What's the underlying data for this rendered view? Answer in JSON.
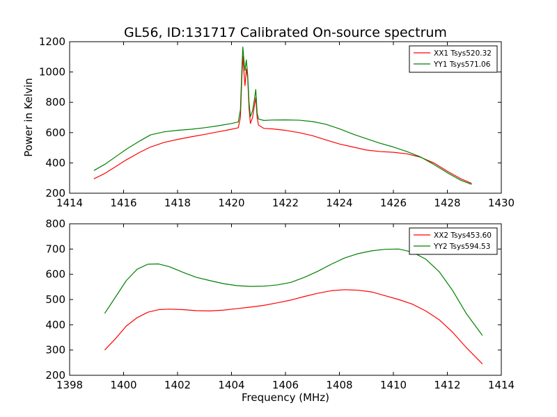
{
  "figure": {
    "title": "GL56, ID:131717 Calibrated On-source spectrum"
  },
  "chart_data": [
    {
      "type": "line",
      "title": "GL56, ID:131717 Calibrated On-source spectrum",
      "xlabel": "",
      "ylabel": "Power in Kelvin",
      "xlim": [
        1414,
        1430
      ],
      "ylim": [
        200,
        1200
      ],
      "xticks": [
        1414,
        1416,
        1418,
        1420,
        1422,
        1424,
        1426,
        1428,
        1430
      ],
      "yticks": [
        200,
        400,
        600,
        800,
        1000,
        1200
      ],
      "legend_position": "top-right",
      "grid": false,
      "series": [
        {
          "name": "XX1 Tsys520.32",
          "color": "#ff0000",
          "points": [
            [
              1414.9,
              295
            ],
            [
              1415.3,
              330
            ],
            [
              1415.7,
              375
            ],
            [
              1416.1,
              420
            ],
            [
              1416.6,
              470
            ],
            [
              1417.0,
              505
            ],
            [
              1417.5,
              535
            ],
            [
              1418.0,
              555
            ],
            [
              1418.5,
              572
            ],
            [
              1419.0,
              588
            ],
            [
              1419.5,
              605
            ],
            [
              1420.0,
              622
            ],
            [
              1420.25,
              632
            ],
            [
              1420.33,
              700
            ],
            [
              1420.38,
              950
            ],
            [
              1420.42,
              1105
            ],
            [
              1420.46,
              1000
            ],
            [
              1420.5,
              910
            ],
            [
              1420.55,
              1020
            ],
            [
              1420.6,
              960
            ],
            [
              1420.65,
              760
            ],
            [
              1420.7,
              660
            ],
            [
              1420.78,
              700
            ],
            [
              1420.85,
              780
            ],
            [
              1420.9,
              830
            ],
            [
              1420.95,
              700
            ],
            [
              1421.0,
              650
            ],
            [
              1421.2,
              628
            ],
            [
              1421.5,
              625
            ],
            [
              1422.0,
              615
            ],
            [
              1422.5,
              600
            ],
            [
              1423.0,
              580
            ],
            [
              1423.5,
              552
            ],
            [
              1424.0,
              525
            ],
            [
              1424.5,
              505
            ],
            [
              1425.0,
              485
            ],
            [
              1425.5,
              475
            ],
            [
              1426.0,
              470
            ],
            [
              1426.5,
              460
            ],
            [
              1427.0,
              438
            ],
            [
              1427.5,
              400
            ],
            [
              1428.0,
              345
            ],
            [
              1428.5,
              295
            ],
            [
              1428.9,
              265
            ]
          ]
        },
        {
          "name": "YY1 Tsys571.06",
          "color": "#008000",
          "points": [
            [
              1414.9,
              350
            ],
            [
              1415.3,
              390
            ],
            [
              1415.7,
              440
            ],
            [
              1416.1,
              490
            ],
            [
              1416.6,
              545
            ],
            [
              1417.0,
              585
            ],
            [
              1417.5,
              605
            ],
            [
              1418.0,
              615
            ],
            [
              1418.5,
              622
            ],
            [
              1419.0,
              632
            ],
            [
              1419.5,
              645
            ],
            [
              1420.0,
              660
            ],
            [
              1420.25,
              670
            ],
            [
              1420.33,
              750
            ],
            [
              1420.38,
              1000
            ],
            [
              1420.42,
              1165
            ],
            [
              1420.46,
              1080
            ],
            [
              1420.5,
              1010
            ],
            [
              1420.55,
              1080
            ],
            [
              1420.6,
              980
            ],
            [
              1420.65,
              800
            ],
            [
              1420.7,
              705
            ],
            [
              1420.78,
              745
            ],
            [
              1420.85,
              820
            ],
            [
              1420.9,
              885
            ],
            [
              1420.95,
              730
            ],
            [
              1421.0,
              690
            ],
            [
              1421.2,
              680
            ],
            [
              1421.5,
              683
            ],
            [
              1422.0,
              684
            ],
            [
              1422.5,
              682
            ],
            [
              1423.0,
              673
            ],
            [
              1423.5,
              655
            ],
            [
              1424.0,
              625
            ],
            [
              1424.5,
              590
            ],
            [
              1425.0,
              560
            ],
            [
              1425.5,
              530
            ],
            [
              1426.0,
              505
            ],
            [
              1426.5,
              475
            ],
            [
              1427.0,
              440
            ],
            [
              1427.5,
              390
            ],
            [
              1428.0,
              335
            ],
            [
              1428.5,
              285
            ],
            [
              1428.9,
              258
            ]
          ]
        }
      ]
    },
    {
      "type": "line",
      "title": "",
      "xlabel": "Frequency (MHz)",
      "ylabel": "",
      "xlim": [
        1398,
        1414
      ],
      "ylim": [
        200,
        800
      ],
      "xticks": [
        1398,
        1400,
        1402,
        1404,
        1406,
        1408,
        1410,
        1412,
        1414
      ],
      "yticks": [
        200,
        300,
        400,
        500,
        600,
        700,
        800
      ],
      "legend_position": "top-right",
      "grid": false,
      "series": [
        {
          "name": "XX2 Tsys453.60",
          "color": "#ff0000",
          "points": [
            [
              1399.3,
              300
            ],
            [
              1399.7,
              345
            ],
            [
              1400.1,
              395
            ],
            [
              1400.5,
              428
            ],
            [
              1400.9,
              450
            ],
            [
              1401.3,
              460
            ],
            [
              1401.7,
              462
            ],
            [
              1402.2,
              460
            ],
            [
              1402.7,
              456
            ],
            [
              1403.2,
              455
            ],
            [
              1403.7,
              458
            ],
            [
              1404.2,
              464
            ],
            [
              1404.7,
              470
            ],
            [
              1405.2,
              477
            ],
            [
              1405.7,
              487
            ],
            [
              1406.2,
              498
            ],
            [
              1406.7,
              512
            ],
            [
              1407.2,
              525
            ],
            [
              1407.7,
              535
            ],
            [
              1408.2,
              539
            ],
            [
              1408.7,
              537
            ],
            [
              1409.2,
              530
            ],
            [
              1409.7,
              515
            ],
            [
              1410.2,
              500
            ],
            [
              1410.7,
              482
            ],
            [
              1411.2,
              455
            ],
            [
              1411.7,
              420
            ],
            [
              1412.2,
              370
            ],
            [
              1412.7,
              310
            ],
            [
              1413.3,
              245
            ]
          ]
        },
        {
          "name": "YY2 Tsys594.53",
          "color": "#008000",
          "points": [
            [
              1399.3,
              445
            ],
            [
              1399.7,
              510
            ],
            [
              1400.1,
              575
            ],
            [
              1400.5,
              620
            ],
            [
              1400.9,
              640
            ],
            [
              1401.3,
              641
            ],
            [
              1401.7,
              630
            ],
            [
              1402.2,
              608
            ],
            [
              1402.7,
              588
            ],
            [
              1403.2,
              575
            ],
            [
              1403.7,
              563
            ],
            [
              1404.2,
              555
            ],
            [
              1404.7,
              552
            ],
            [
              1405.2,
              553
            ],
            [
              1405.7,
              558
            ],
            [
              1406.2,
              568
            ],
            [
              1406.7,
              588
            ],
            [
              1407.2,
              612
            ],
            [
              1407.7,
              640
            ],
            [
              1408.2,
              665
            ],
            [
              1408.7,
              682
            ],
            [
              1409.2,
              693
            ],
            [
              1409.7,
              699
            ],
            [
              1410.2,
              700
            ],
            [
              1410.7,
              688
            ],
            [
              1411.2,
              660
            ],
            [
              1411.7,
              610
            ],
            [
              1412.2,
              535
            ],
            [
              1412.7,
              445
            ],
            [
              1413.3,
              358
            ]
          ]
        }
      ]
    }
  ]
}
